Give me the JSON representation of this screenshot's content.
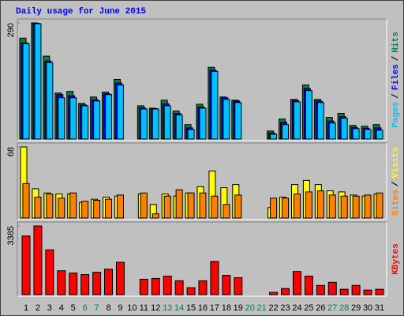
{
  "chart_data": {
    "type": "bar",
    "title": "Daily usage for June 2015",
    "separator": "/",
    "categories": [
      "1",
      "2",
      "3",
      "4",
      "5",
      "6",
      "7",
      "8",
      "9",
      "10",
      "11",
      "12",
      "13",
      "14",
      "15",
      "16",
      "17",
      "18",
      "19",
      "20",
      "21",
      "22",
      "23",
      "24",
      "25",
      "26",
      "27",
      "28",
      "29",
      "30",
      "31"
    ],
    "category_colors": [
      "#000000",
      "#000000",
      "#000000",
      "#000000",
      "#000000",
      "#00805c",
      "#00805c",
      "#000000",
      "#000000",
      "#000000",
      "#000000",
      "#000000",
      "#00805c",
      "#00805c",
      "#000000",
      "#000000",
      "#000000",
      "#000000",
      "#000000",
      "#00805c",
      "#00805c",
      "#000000",
      "#000000",
      "#000000",
      "#000000",
      "#000000",
      "#00805c",
      "#00805c",
      "#000000",
      "#000000",
      "#000000"
    ],
    "panels": [
      {
        "ylim": [
          0,
          290
        ],
        "yticks": [
          290
        ],
        "series": [
          {
            "name": "Hits",
            "color": "#008040",
            "values": [
              252,
              290,
              207,
              115,
              119,
              89,
              105,
              117,
              149,
              0,
              83,
              77,
              97,
              70,
              36,
              87,
              179,
              105,
              97,
              0,
              0,
              20,
              50,
              99,
              135,
              99,
              54,
              64,
              34,
              32,
              36
            ]
          },
          {
            "name": "Files",
            "color": "#0000ff",
            "values": [
              240,
              289,
              195,
              111,
              108,
              85,
              98,
              113,
              140,
              0,
              78,
              76,
              88,
              64,
              28,
              80,
              172,
              103,
              95,
              0,
              0,
              15,
              42,
              96,
              126,
              95,
              45,
              56,
              29,
              27,
              28
            ]
          },
          {
            "name": "Pages",
            "color": "#00c0ff",
            "values": [
              238,
              288,
              191,
              103,
              103,
              83,
              95,
              111,
              135,
              0,
              75,
              75,
              83,
              60,
              24,
              77,
              169,
              99,
              91,
              0,
              0,
              12,
              36,
              93,
              121,
              91,
              40,
              52,
              26,
              24,
              22
            ]
          }
        ]
      },
      {
        "ylim": [
          0,
          68
        ],
        "yticks": [
          68
        ],
        "series": [
          {
            "name": "Visits",
            "color": "#ffff00",
            "values": [
              68,
              28,
              24,
              23,
              23,
              15,
              18,
              20,
              21,
              0,
              23,
              13,
              23,
              21,
              24,
              30,
              45,
              29,
              32,
              0,
              0,
              10,
              20,
              32,
              36,
              32,
              26,
              25,
              22,
              21,
              23
            ]
          },
          {
            "name": "Sites",
            "color": "#ff8000",
            "values": [
              33,
              20,
              23,
              19,
              24,
              16,
              17,
              18,
              22,
              0,
              24,
              4,
              21,
              27,
              24,
              24,
              21,
              13,
              22,
              0,
              0,
              19,
              19,
              23,
              25,
              26,
              22,
              21,
              21,
              22,
              24
            ]
          }
        ]
      },
      {
        "ylim": [
          0,
          3385
        ],
        "yticks": [
          3385
        ],
        "series": [
          {
            "name": "KBytes",
            "color": "#ff0000",
            "values": [
              2890,
              3385,
              2206,
              1179,
              1065,
              989,
              1103,
              1255,
              1597,
              0,
              761,
              799,
              913,
              685,
              342,
              685,
              1635,
              951,
              837,
              0,
              0,
              114,
              304,
              1141,
              913,
              456,
              609,
              266,
              456,
              228,
              266
            ]
          }
        ]
      }
    ]
  }
}
